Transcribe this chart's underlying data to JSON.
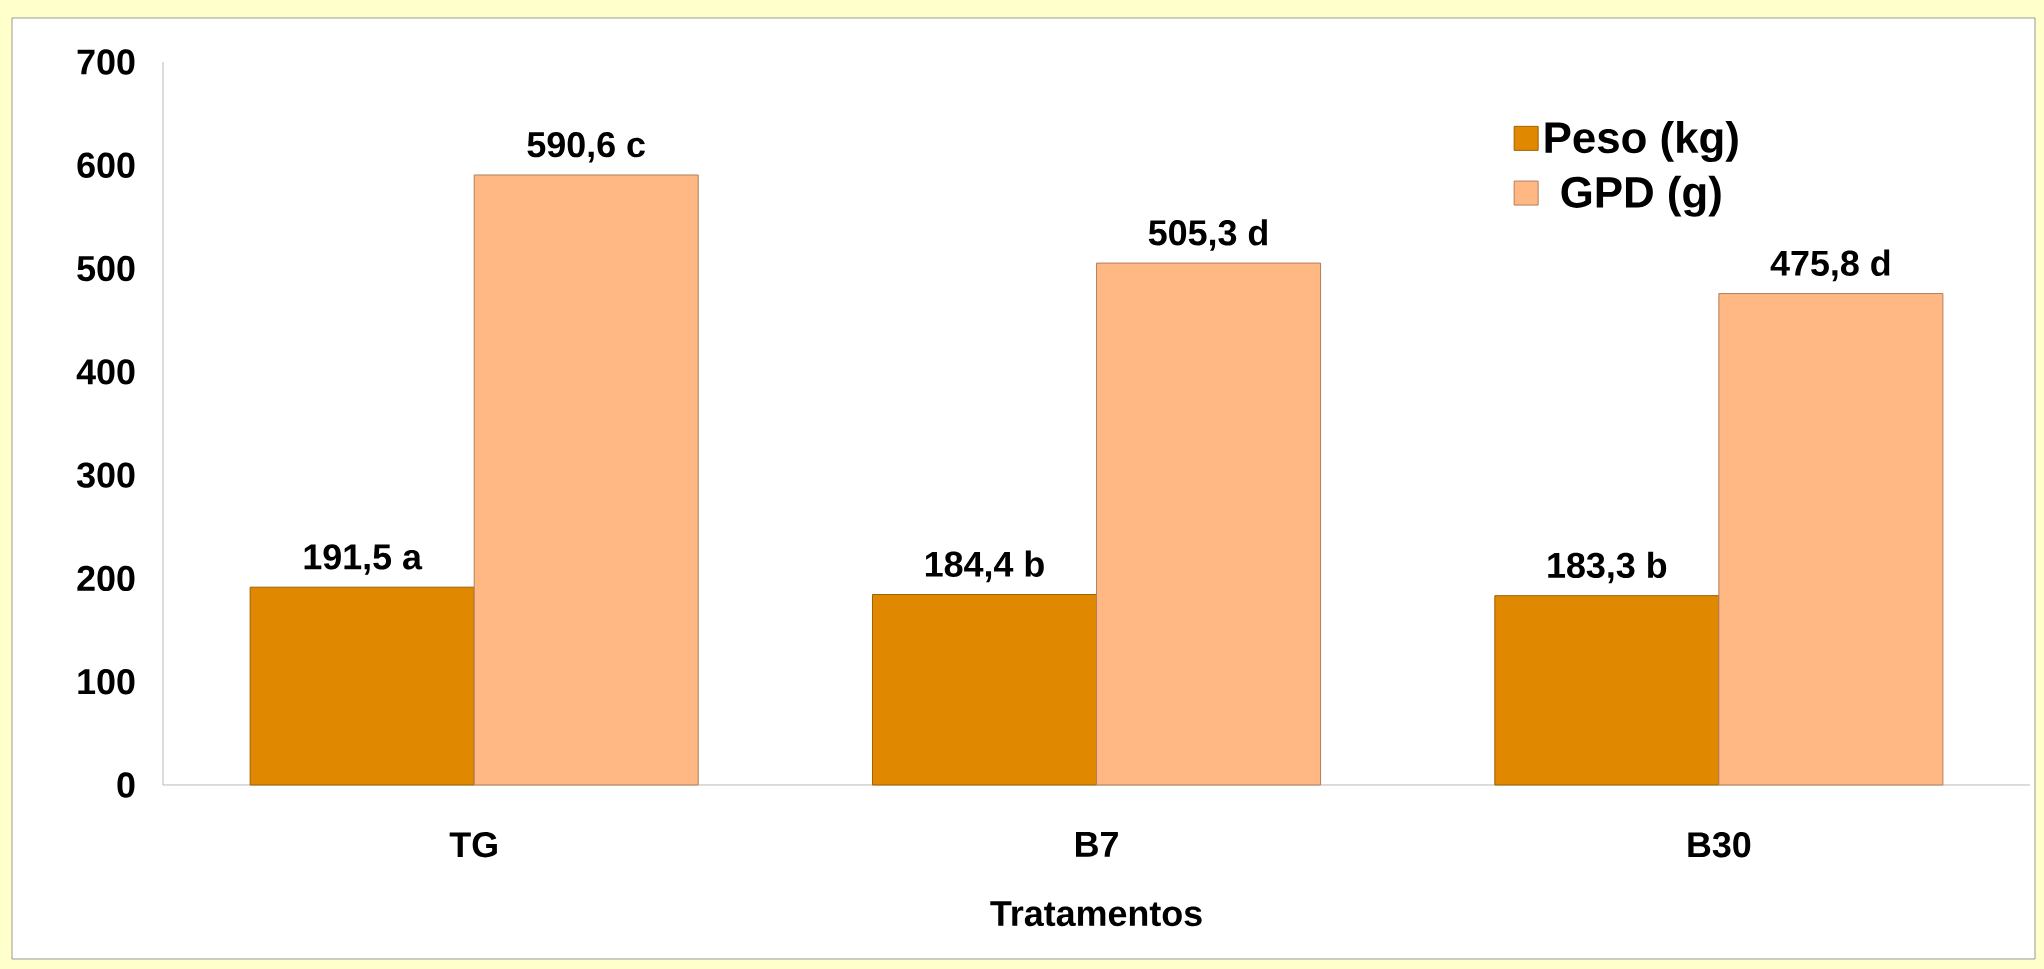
{
  "chart_data": {
    "type": "bar",
    "xlabel": "Tratamentos",
    "categories": [
      "TG",
      "B7",
      "B30"
    ],
    "series": [
      {
        "name": "Peso (kg)",
        "color": "#e08900",
        "values": [
          191.5,
          184.4,
          183.3
        ],
        "value_labels": [
          "191,5 a",
          "184,4 b",
          "183,3 b"
        ]
      },
      {
        "name": "GPD (g)",
        "color": "#ffb784",
        "values": [
          590.6,
          505.3,
          475.8
        ],
        "value_labels": [
          "590,6 c",
          "505,3 d",
          "475,8 d"
        ]
      }
    ],
    "ylim": [
      0,
      700
    ],
    "yticks": [
      0,
      100,
      200,
      300,
      400,
      500,
      600,
      700
    ],
    "legend": "top right"
  }
}
